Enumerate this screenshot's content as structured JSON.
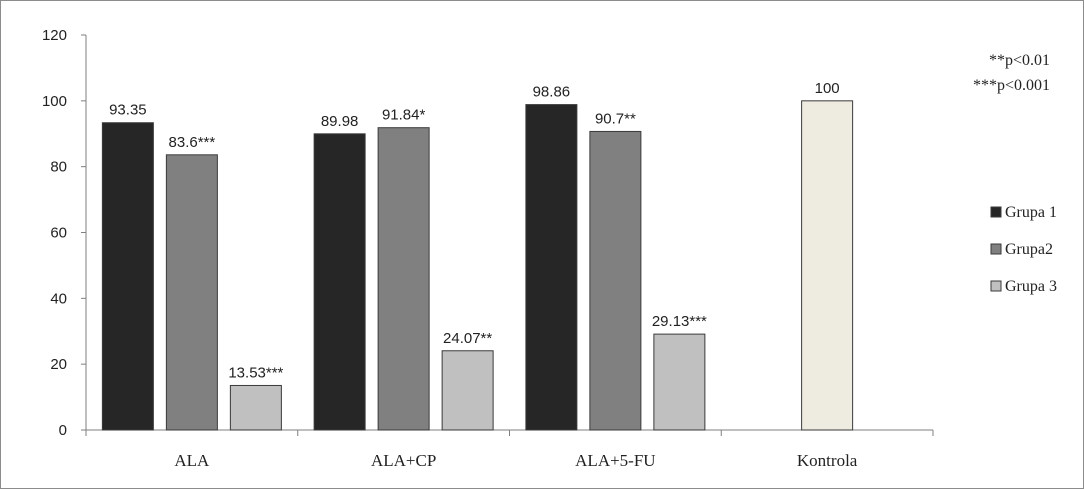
{
  "chart_data": {
    "type": "bar",
    "categories": [
      "ALA",
      "ALA+CP",
      "ALA+5-FU",
      "Kontrola"
    ],
    "ylim": [
      0,
      120
    ],
    "yticks": [
      0,
      20,
      40,
      60,
      80,
      100,
      120
    ],
    "grid": false,
    "legend_position": "right",
    "series": [
      {
        "name": "Grupa 1",
        "color": "#262626",
        "values": [
          93.35,
          89.98,
          98.86,
          null
        ],
        "labels": [
          "93.35",
          "89.98",
          "98.86",
          ""
        ]
      },
      {
        "name": "Grupa2",
        "color": "#808080",
        "values": [
          83.6,
          91.84,
          90.7,
          null
        ],
        "labels": [
          "83.6***",
          "91.84*",
          "90.7**",
          ""
        ]
      },
      {
        "name": "Grupa 3",
        "color": "#c0c0c0",
        "values": [
          13.53,
          24.07,
          29.13,
          null
        ],
        "labels": [
          "13.53***",
          "24.07**",
          "29.13***",
          ""
        ]
      },
      {
        "name": "",
        "color": "#eeece1",
        "values": [
          null,
          null,
          null,
          100
        ],
        "labels": [
          "",
          "",
          "",
          "100"
        ]
      }
    ],
    "annotations": [
      "**p<0.01",
      "***p<0.001"
    ]
  }
}
